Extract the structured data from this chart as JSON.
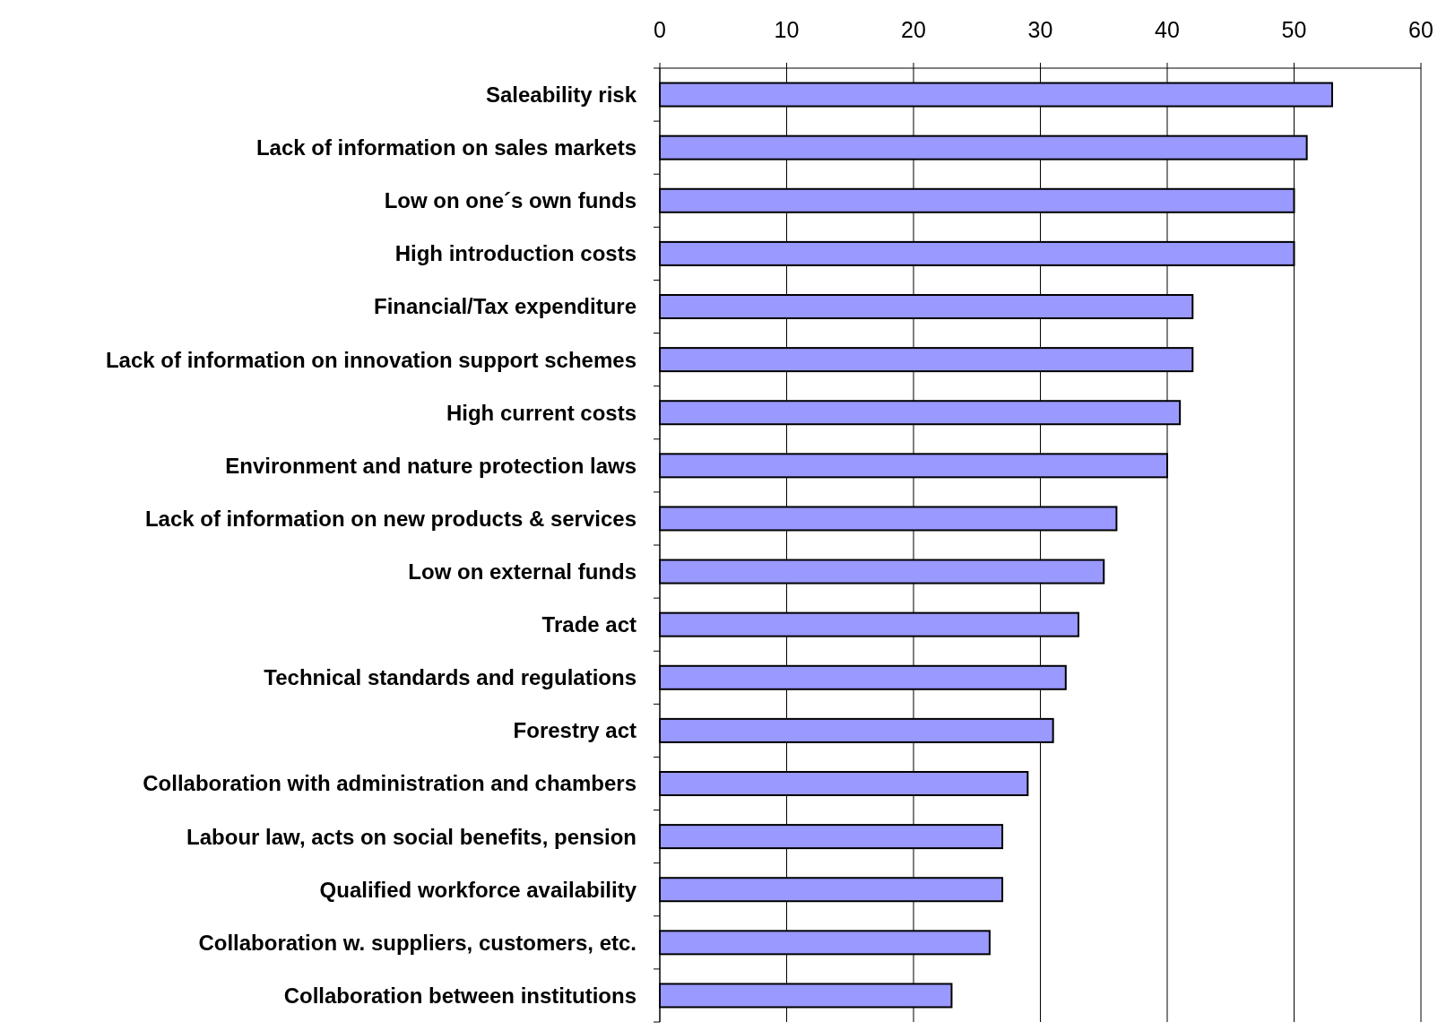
{
  "chart_data": {
    "type": "bar",
    "orientation": "horizontal",
    "categories": [
      "Saleability risk",
      "Lack of information on sales markets",
      "Low on one´s own funds",
      "High introduction costs",
      "Financial/Tax expenditure",
      "Lack of information on innovation support schemes",
      "High current costs",
      "Environment and nature protection laws",
      "Lack of information on new products & services",
      "Low on external funds",
      "Trade act",
      "Technical standards and regulations",
      "Forestry act",
      "Collaboration with administration and chambers",
      "Labour law, acts on social benefits, pension",
      "Qualified workforce availability",
      "Collaboration w. suppliers, customers, etc.",
      "Collaboration between institutions"
    ],
    "values": [
      53,
      51,
      50,
      50,
      42,
      42,
      41,
      40,
      36,
      35,
      33,
      32,
      31,
      29,
      27,
      27,
      26,
      23
    ],
    "color": "#9999ff",
    "xlim": [
      0,
      60
    ],
    "xticks": [
      0,
      10,
      20,
      30,
      40,
      50,
      60
    ],
    "grid": "x"
  }
}
